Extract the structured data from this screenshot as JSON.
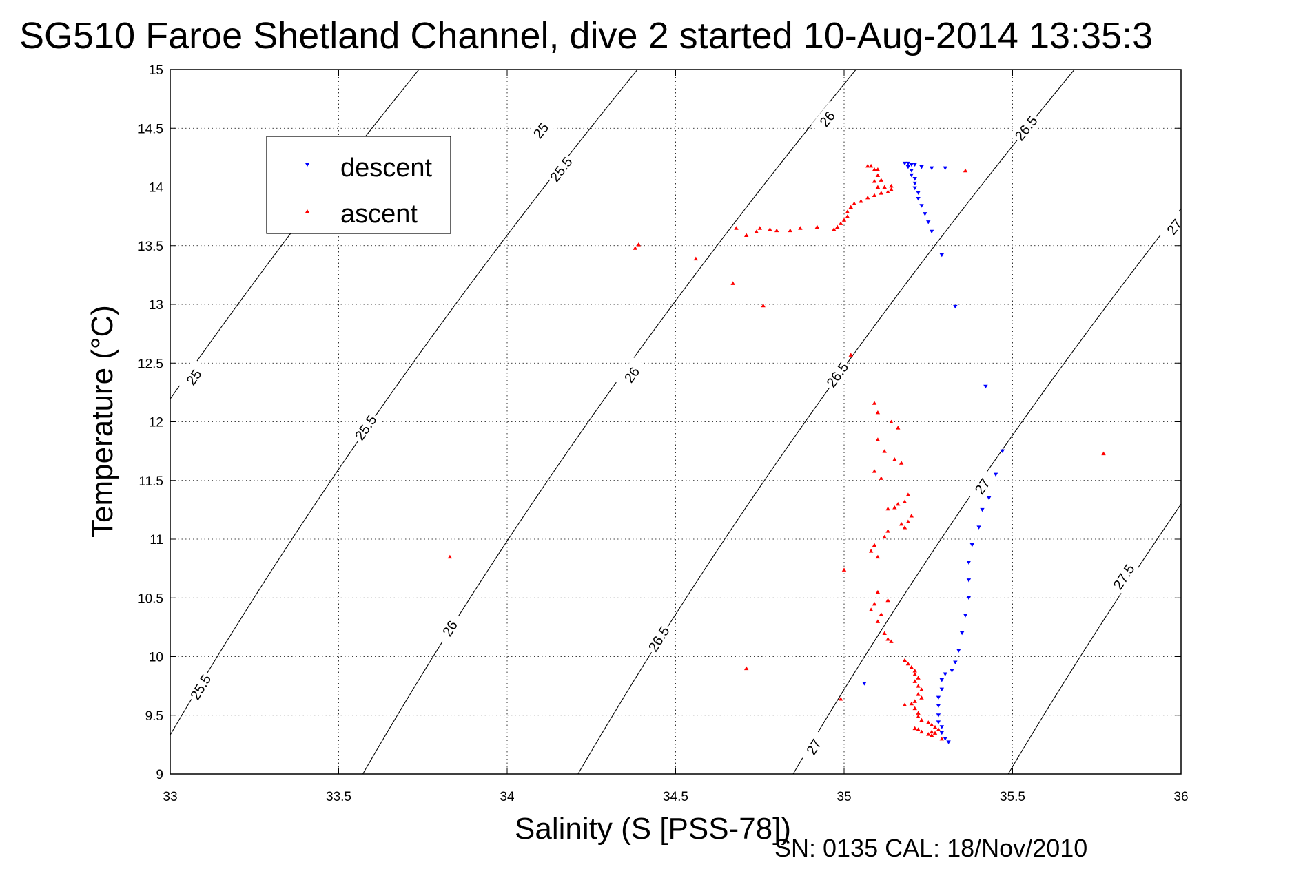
{
  "chart_data": {
    "type": "scatter",
    "title": "SG510 Faroe Shetland Channel, dive 2 started 10-Aug-2014 13:35:3",
    "xlabel": "Salinity (S [PSS-78])",
    "ylabel": "Temperature (°C)",
    "footer": "SN: 0135  CAL: 18/Nov/2010",
    "xlim": [
      33,
      36
    ],
    "ylim": [
      9,
      15
    ],
    "xticks": [
      33,
      33.5,
      34,
      34.5,
      35,
      35.5,
      36
    ],
    "yticks": [
      9,
      9.5,
      10,
      10.5,
      11,
      11.5,
      12,
      12.5,
      13,
      13.5,
      14,
      14.5,
      15
    ],
    "xtick_labels": [
      "33",
      "33.5",
      "34",
      "34.5",
      "35",
      "35.5",
      "36"
    ],
    "ytick_labels": [
      "9",
      "9.5",
      "10",
      "10.5",
      "11",
      "11.5",
      "12",
      "12.5",
      "13",
      "13.5",
      "14",
      "14.5",
      "15"
    ],
    "grid": true,
    "legend_position": "top-left",
    "colors": {
      "descent": "#0000ff",
      "ascent": "#ff0000",
      "contour": "#000000"
    },
    "contours": {
      "levels": [
        25,
        25.5,
        26,
        26.5,
        27,
        27.5
      ],
      "labels": [
        {
          "level": "25",
          "x": 34.1,
          "y": 14.48
        },
        {
          "level": "25",
          "x": 33.07,
          "y": 12.38
        },
        {
          "level": "25.5",
          "x": 34.16,
          "y": 14.15
        },
        {
          "level": "25.5",
          "x": 33.58,
          "y": 11.95
        },
        {
          "level": "25.5",
          "x": 33.09,
          "y": 9.74
        },
        {
          "level": "26",
          "x": 34.95,
          "y": 14.58
        },
        {
          "level": "26",
          "x": 34.37,
          "y": 12.4
        },
        {
          "level": "26",
          "x": 33.83,
          "y": 10.24
        },
        {
          "level": "26.5",
          "x": 35.54,
          "y": 14.5
        },
        {
          "level": "26.5",
          "x": 34.98,
          "y": 12.4
        },
        {
          "level": "26.5",
          "x": 34.45,
          "y": 10.15
        },
        {
          "level": "27",
          "x": 35.98,
          "y": 13.66
        },
        {
          "level": "27",
          "x": 35.41,
          "y": 11.45
        },
        {
          "level": "27",
          "x": 34.91,
          "y": 9.23
        },
        {
          "level": "27.5",
          "x": 35.83,
          "y": 10.68
        }
      ]
    },
    "series": [
      {
        "name": "descent",
        "marker": "triangle-down",
        "points": [
          [
            35.18,
            14.2
          ],
          [
            35.19,
            14.2
          ],
          [
            35.2,
            14.19
          ],
          [
            35.21,
            14.19
          ],
          [
            35.23,
            14.17
          ],
          [
            35.26,
            14.16
          ],
          [
            35.3,
            14.16
          ],
          [
            35.19,
            14.17
          ],
          [
            35.2,
            14.14
          ],
          [
            35.2,
            14.1
          ],
          [
            35.21,
            14.07
          ],
          [
            35.21,
            14.03
          ],
          [
            35.21,
            13.99
          ],
          [
            35.22,
            13.95
          ],
          [
            35.22,
            13.9
          ],
          [
            35.23,
            13.84
          ],
          [
            35.24,
            13.77
          ],
          [
            35.25,
            13.7
          ],
          [
            35.26,
            13.62
          ],
          [
            35.29,
            13.42
          ],
          [
            35.33,
            12.98
          ],
          [
            35.42,
            12.3
          ],
          [
            35.47,
            11.75
          ],
          [
            35.45,
            11.55
          ],
          [
            35.43,
            11.35
          ],
          [
            35.41,
            11.25
          ],
          [
            35.4,
            11.1
          ],
          [
            35.38,
            10.95
          ],
          [
            35.37,
            10.8
          ],
          [
            35.37,
            10.65
          ],
          [
            35.37,
            10.5
          ],
          [
            35.36,
            10.35
          ],
          [
            35.35,
            10.2
          ],
          [
            35.34,
            10.05
          ],
          [
            35.33,
            9.95
          ],
          [
            35.32,
            9.88
          ],
          [
            35.3,
            9.85
          ],
          [
            35.29,
            9.8
          ],
          [
            35.29,
            9.72
          ],
          [
            35.28,
            9.65
          ],
          [
            35.28,
            9.58
          ],
          [
            35.28,
            9.5
          ],
          [
            35.28,
            9.44
          ],
          [
            35.29,
            9.4
          ],
          [
            35.29,
            9.35
          ],
          [
            35.3,
            9.3
          ],
          [
            35.31,
            9.27
          ],
          [
            35.06,
            9.77
          ]
        ]
      },
      {
        "name": "ascent",
        "marker": "triangle-up",
        "points": [
          [
            35.07,
            14.18
          ],
          [
            35.08,
            14.18
          ],
          [
            35.09,
            14.15
          ],
          [
            35.1,
            14.15
          ],
          [
            35.1,
            14.1
          ],
          [
            35.11,
            14.06
          ],
          [
            35.09,
            14.05
          ],
          [
            35.1,
            14.0
          ],
          [
            35.12,
            14.0
          ],
          [
            35.14,
            14.01
          ],
          [
            35.14,
            13.98
          ],
          [
            35.13,
            13.96
          ],
          [
            35.11,
            13.95
          ],
          [
            35.09,
            13.93
          ],
          [
            35.07,
            13.91
          ],
          [
            35.05,
            13.88
          ],
          [
            35.03,
            13.86
          ],
          [
            35.02,
            13.83
          ],
          [
            35.01,
            13.79
          ],
          [
            35.01,
            13.75
          ],
          [
            35.0,
            13.72
          ],
          [
            34.99,
            13.69
          ],
          [
            34.98,
            13.66
          ],
          [
            34.97,
            13.64
          ],
          [
            34.92,
            13.66
          ],
          [
            34.87,
            13.65
          ],
          [
            34.84,
            13.63
          ],
          [
            34.8,
            13.63
          ],
          [
            34.78,
            13.64
          ],
          [
            34.75,
            13.65
          ],
          [
            34.74,
            13.62
          ],
          [
            34.71,
            13.59
          ],
          [
            34.68,
            13.65
          ],
          [
            35.36,
            14.14
          ],
          [
            34.38,
            13.48
          ],
          [
            34.39,
            13.51
          ],
          [
            34.56,
            13.39
          ],
          [
            34.67,
            13.18
          ],
          [
            34.76,
            12.99
          ],
          [
            35.02,
            12.57
          ],
          [
            35.09,
            12.16
          ],
          [
            35.1,
            12.08
          ],
          [
            35.14,
            12.0
          ],
          [
            35.16,
            11.95
          ],
          [
            35.1,
            11.85
          ],
          [
            35.12,
            11.75
          ],
          [
            35.15,
            11.68
          ],
          [
            35.17,
            11.65
          ],
          [
            35.09,
            11.58
          ],
          [
            35.11,
            11.52
          ],
          [
            35.19,
            11.38
          ],
          [
            35.18,
            11.32
          ],
          [
            35.16,
            11.3
          ],
          [
            35.15,
            11.27
          ],
          [
            35.13,
            11.26
          ],
          [
            35.2,
            11.2
          ],
          [
            35.19,
            11.15
          ],
          [
            35.17,
            11.13
          ],
          [
            35.18,
            11.1
          ],
          [
            35.13,
            11.07
          ],
          [
            35.12,
            11.02
          ],
          [
            35.09,
            10.95
          ],
          [
            35.08,
            10.9
          ],
          [
            35.1,
            10.85
          ],
          [
            35.0,
            10.74
          ],
          [
            35.1,
            10.55
          ],
          [
            35.13,
            10.48
          ],
          [
            35.09,
            10.45
          ],
          [
            35.08,
            10.4
          ],
          [
            35.11,
            10.36
          ],
          [
            35.1,
            10.3
          ],
          [
            35.12,
            10.2
          ],
          [
            35.14,
            10.13
          ],
          [
            35.13,
            10.15
          ],
          [
            35.18,
            9.97
          ],
          [
            35.19,
            9.94
          ],
          [
            35.2,
            9.91
          ],
          [
            35.21,
            9.88
          ],
          [
            35.21,
            9.85
          ],
          [
            35.22,
            9.82
          ],
          [
            35.21,
            9.79
          ],
          [
            35.22,
            9.75
          ],
          [
            35.23,
            9.72
          ],
          [
            35.22,
            9.68
          ],
          [
            35.23,
            9.65
          ],
          [
            35.21,
            9.62
          ],
          [
            35.2,
            9.6
          ],
          [
            35.18,
            9.59
          ],
          [
            35.21,
            9.56
          ],
          [
            35.22,
            9.52
          ],
          [
            35.22,
            9.49
          ],
          [
            35.23,
            9.46
          ],
          [
            35.25,
            9.44
          ],
          [
            35.26,
            9.42
          ],
          [
            35.27,
            9.4
          ],
          [
            35.28,
            9.38
          ],
          [
            35.27,
            9.35
          ],
          [
            35.26,
            9.33
          ],
          [
            35.25,
            9.34
          ],
          [
            35.23,
            9.36
          ],
          [
            35.22,
            9.38
          ],
          [
            35.21,
            9.39
          ],
          [
            35.26,
            9.36
          ],
          [
            35.29,
            9.3
          ],
          [
            34.71,
            9.9
          ],
          [
            34.99,
            9.64
          ],
          [
            33.83,
            10.85
          ],
          [
            35.77,
            11.73
          ]
        ]
      }
    ]
  }
}
